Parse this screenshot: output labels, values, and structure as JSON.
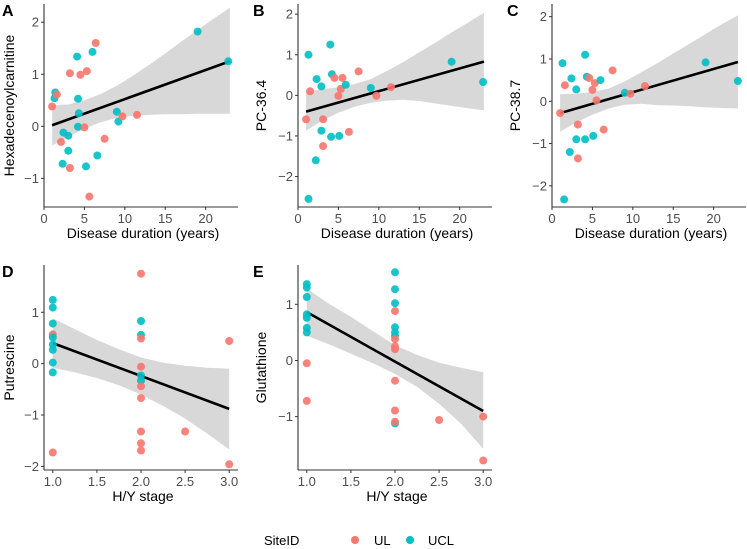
{
  "colors": {
    "UL": "#F8766D",
    "UCL": "#00BFC4",
    "ribbon": "#BEBEBE",
    "fit_line": "#000000",
    "axis": "#333333"
  },
  "legend": {
    "title": "SiteID",
    "items": [
      {
        "key": "UL",
        "label": "UL"
      },
      {
        "key": "UCL",
        "label": "UCL"
      }
    ]
  },
  "chart_data": [
    {
      "panel": "A",
      "type": "scatter",
      "title": "",
      "xlabel": "Disease duration (years)",
      "ylabel": "Hexadecenoylcarnitine",
      "xlim": [
        0,
        24
      ],
      "ylim": [
        -1.55,
        2.35
      ],
      "xticks": [
        0,
        5,
        10,
        15,
        20
      ],
      "yticks": [
        -1,
        0,
        1,
        2
      ],
      "xtick_labels": [
        "0",
        "5",
        "10",
        "15",
        "20"
      ],
      "ytick_labels": [
        "−1",
        "0",
        "1",
        "2"
      ],
      "fit": {
        "x": [
          1,
          23
        ],
        "y": [
          0.02,
          1.25
        ]
      },
      "ribbon": {
        "x": [
          1,
          3,
          5,
          7,
          9,
          11,
          13,
          15,
          17,
          19,
          21,
          23
        ],
        "lower": [
          -0.37,
          -0.2,
          -0.05,
          0.08,
          0.16,
          0.2,
          0.22,
          0.23,
          0.23,
          0.24,
          0.24,
          0.24
        ],
        "upper": [
          0.41,
          0.42,
          0.5,
          0.62,
          0.78,
          0.97,
          1.18,
          1.4,
          1.63,
          1.85,
          2.07,
          2.28
        ]
      },
      "points": [
        {
          "x": 1.0,
          "y": 0.38,
          "site": "UL"
        },
        {
          "x": 1.4,
          "y": 0.65,
          "site": "UCL"
        },
        {
          "x": 1.3,
          "y": 0.54,
          "site": "UCL"
        },
        {
          "x": 1.6,
          "y": 0.61,
          "site": "UL"
        },
        {
          "x": 2.1,
          "y": -0.3,
          "site": "UL"
        },
        {
          "x": 2.3,
          "y": -0.72,
          "site": "UCL"
        },
        {
          "x": 2.4,
          "y": -0.12,
          "site": "UCL"
        },
        {
          "x": 3.0,
          "y": -0.18,
          "site": "UCL"
        },
        {
          "x": 3.0,
          "y": -0.47,
          "site": "UCL"
        },
        {
          "x": 3.2,
          "y": 1.02,
          "site": "UL"
        },
        {
          "x": 3.2,
          "y": -0.8,
          "site": "UL"
        },
        {
          "x": 4.1,
          "y": 1.34,
          "site": "UCL"
        },
        {
          "x": 4.2,
          "y": 0.53,
          "site": "UCL"
        },
        {
          "x": 4.3,
          "y": 0.25,
          "site": "UCL"
        },
        {
          "x": 4.2,
          "y": -0.01,
          "site": "UCL"
        },
        {
          "x": 4.5,
          "y": 0.99,
          "site": "UL"
        },
        {
          "x": 5.0,
          "y": -0.02,
          "site": "UL"
        },
        {
          "x": 5.2,
          "y": -0.77,
          "site": "UCL"
        },
        {
          "x": 5.3,
          "y": 1.06,
          "site": "UL"
        },
        {
          "x": 5.6,
          "y": -1.35,
          "site": "UL"
        },
        {
          "x": 6.0,
          "y": 1.43,
          "site": "UCL"
        },
        {
          "x": 6.4,
          "y": 1.6,
          "site": "UL"
        },
        {
          "x": 6.6,
          "y": -0.56,
          "site": "UCL"
        },
        {
          "x": 7.5,
          "y": -0.24,
          "site": "UL"
        },
        {
          "x": 9.0,
          "y": 0.28,
          "site": "UCL"
        },
        {
          "x": 9.2,
          "y": 0.09,
          "site": "UCL"
        },
        {
          "x": 9.7,
          "y": 0.19,
          "site": "UL"
        },
        {
          "x": 11.5,
          "y": 0.22,
          "site": "UL"
        },
        {
          "x": 19.0,
          "y": 1.82,
          "site": "UCL"
        },
        {
          "x": 22.8,
          "y": 1.25,
          "site": "UCL"
        }
      ]
    },
    {
      "panel": "B",
      "type": "scatter",
      "title": "",
      "xlabel": "Disease duration (years)",
      "ylabel": "PC-36.4",
      "xlim": [
        0,
        24
      ],
      "ylim": [
        -2.75,
        2.25
      ],
      "xticks": [
        0,
        5,
        10,
        15,
        20
      ],
      "yticks": [
        -2,
        -1,
        0,
        1,
        2
      ],
      "xtick_labels": [
        "0",
        "5",
        "10",
        "15",
        "20"
      ],
      "ytick_labels": [
        "−2",
        "−1",
        "0",
        "1",
        "2"
      ],
      "fit": {
        "x": [
          1,
          23
        ],
        "y": [
          -0.4,
          0.83
        ]
      },
      "ribbon": {
        "x": [
          1,
          3,
          5,
          7,
          9,
          11,
          13,
          15,
          17,
          19,
          21,
          23
        ],
        "lower": [
          -0.87,
          -0.62,
          -0.43,
          -0.28,
          -0.18,
          -0.13,
          -0.11,
          -0.14,
          -0.2,
          -0.26,
          -0.32,
          -0.37
        ],
        "upper": [
          0.08,
          0.15,
          0.2,
          0.28,
          0.4,
          0.6,
          0.82,
          1.06,
          1.3,
          1.55,
          1.79,
          2.03
        ]
      },
      "points": [
        {
          "x": 1.0,
          "y": -0.59,
          "site": "UL"
        },
        {
          "x": 1.3,
          "y": 1.0,
          "site": "UCL"
        },
        {
          "x": 1.5,
          "y": 0.1,
          "site": "UL"
        },
        {
          "x": 1.3,
          "y": -2.55,
          "site": "UCL"
        },
        {
          "x": 2.2,
          "y": -1.6,
          "site": "UCL"
        },
        {
          "x": 2.3,
          "y": 0.4,
          "site": "UCL"
        },
        {
          "x": 2.9,
          "y": 0.22,
          "site": "UCL"
        },
        {
          "x": 2.9,
          "y": -0.87,
          "site": "UCL"
        },
        {
          "x": 3.1,
          "y": -0.59,
          "site": "UL"
        },
        {
          "x": 3.1,
          "y": -1.25,
          "site": "UL"
        },
        {
          "x": 4.0,
          "y": 1.25,
          "site": "UCL"
        },
        {
          "x": 4.1,
          "y": -1.02,
          "site": "UCL"
        },
        {
          "x": 4.2,
          "y": 0.52,
          "site": "UCL"
        },
        {
          "x": 4.5,
          "y": 0.43,
          "site": "UL"
        },
        {
          "x": 5.0,
          "y": -0.01,
          "site": "UL"
        },
        {
          "x": 5.1,
          "y": -1.0,
          "site": "UCL"
        },
        {
          "x": 5.3,
          "y": 0.16,
          "site": "UL"
        },
        {
          "x": 5.5,
          "y": 0.43,
          "site": "UL"
        },
        {
          "x": 5.9,
          "y": 0.26,
          "site": "UCL"
        },
        {
          "x": 6.3,
          "y": -0.9,
          "site": "UL"
        },
        {
          "x": 7.5,
          "y": 0.59,
          "site": "UL"
        },
        {
          "x": 9.0,
          "y": 0.18,
          "site": "UCL"
        },
        {
          "x": 9.7,
          "y": -0.01,
          "site": "UL"
        },
        {
          "x": 11.5,
          "y": 0.2,
          "site": "UL"
        },
        {
          "x": 19.0,
          "y": 0.83,
          "site": "UCL"
        },
        {
          "x": 22.9,
          "y": 0.33,
          "site": "UCL"
        }
      ]
    },
    {
      "panel": "C",
      "type": "scatter",
      "title": "",
      "xlabel": "Disease duration (years)",
      "ylabel": "PC-38.7",
      "xlim": [
        0,
        24
      ],
      "ylim": [
        -2.5,
        2.3
      ],
      "xticks": [
        0,
        5,
        10,
        15,
        20
      ],
      "yticks": [
        -2,
        -1,
        0,
        1,
        2
      ],
      "xtick_labels": [
        "0",
        "5",
        "10",
        "15",
        "20"
      ],
      "ytick_labels": [
        "−2",
        "−1",
        "0",
        "1",
        "2"
      ],
      "fit": {
        "x": [
          1,
          23
        ],
        "y": [
          -0.28,
          0.93
        ]
      },
      "ribbon": {
        "x": [
          1,
          3,
          5,
          7,
          9,
          11,
          13,
          15,
          17,
          19,
          21,
          23
        ],
        "lower": [
          -0.72,
          -0.5,
          -0.32,
          -0.17,
          -0.08,
          -0.06,
          -0.09,
          -0.1,
          -0.12,
          -0.14,
          -0.16,
          -0.17
        ],
        "upper": [
          0.17,
          0.18,
          0.22,
          0.3,
          0.47,
          0.68,
          0.9,
          1.13,
          1.36,
          1.59,
          1.82,
          2.03
        ]
      },
      "points": [
        {
          "x": 1.0,
          "y": -0.28,
          "site": "UL"
        },
        {
          "x": 1.3,
          "y": 0.9,
          "site": "UCL"
        },
        {
          "x": 1.6,
          "y": 0.38,
          "site": "UL"
        },
        {
          "x": 1.5,
          "y": -2.32,
          "site": "UCL"
        },
        {
          "x": 2.2,
          "y": -1.2,
          "site": "UCL"
        },
        {
          "x": 2.4,
          "y": 0.54,
          "site": "UCL"
        },
        {
          "x": 3.0,
          "y": 0.28,
          "site": "UCL"
        },
        {
          "x": 3.0,
          "y": -0.9,
          "site": "UCL"
        },
        {
          "x": 3.2,
          "y": -0.55,
          "site": "UL"
        },
        {
          "x": 3.2,
          "y": -1.35,
          "site": "UL"
        },
        {
          "x": 4.1,
          "y": 1.1,
          "site": "UCL"
        },
        {
          "x": 4.1,
          "y": -0.9,
          "site": "UCL"
        },
        {
          "x": 4.3,
          "y": 0.58,
          "site": "UCL"
        },
        {
          "x": 4.6,
          "y": 0.55,
          "site": "UL"
        },
        {
          "x": 5.0,
          "y": 0.27,
          "site": "UL"
        },
        {
          "x": 5.1,
          "y": -0.82,
          "site": "UCL"
        },
        {
          "x": 5.3,
          "y": 0.43,
          "site": "UL"
        },
        {
          "x": 5.5,
          "y": 0.02,
          "site": "UL"
        },
        {
          "x": 6.0,
          "y": 0.5,
          "site": "UCL"
        },
        {
          "x": 6.4,
          "y": -0.67,
          "site": "UL"
        },
        {
          "x": 7.5,
          "y": 0.73,
          "site": "UL"
        },
        {
          "x": 9.0,
          "y": 0.2,
          "site": "UCL"
        },
        {
          "x": 9.7,
          "y": 0.18,
          "site": "UL"
        },
        {
          "x": 11.5,
          "y": 0.36,
          "site": "UL"
        },
        {
          "x": 19.0,
          "y": 0.92,
          "site": "UCL"
        },
        {
          "x": 23.0,
          "y": 0.48,
          "site": "UCL"
        }
      ]
    },
    {
      "panel": "D",
      "type": "scatter",
      "title": "",
      "xlabel": "H/Y stage",
      "ylabel": "Putrescine",
      "xlim": [
        0.9,
        3.1
      ],
      "ylim": [
        -2.07,
        1.92
      ],
      "xticks": [
        1.0,
        1.5,
        2.0,
        2.5,
        3.0
      ],
      "yticks": [
        -2,
        -1,
        0,
        1
      ],
      "xtick_labels": [
        "1.0",
        "1.5",
        "2.0",
        "2.5",
        "3.0"
      ],
      "ytick_labels": [
        "−2",
        "−1",
        "0",
        "1"
      ],
      "fit": {
        "x": [
          1,
          3
        ],
        "y": [
          0.4,
          -0.88
        ]
      },
      "ribbon": {
        "x": [
          1,
          1.25,
          1.5,
          1.75,
          2,
          2.25,
          2.5,
          2.75,
          3
        ],
        "lower": [
          -0.08,
          -0.17,
          -0.28,
          -0.42,
          -0.6,
          -0.82,
          -1.07,
          -1.36,
          -1.67
        ],
        "upper": [
          0.88,
          0.67,
          0.46,
          0.28,
          0.12,
          0.02,
          -0.04,
          -0.08,
          -0.1
        ]
      },
      "points": [
        {
          "x": 1.0,
          "y": 1.24,
          "site": "UCL"
        },
        {
          "x": 1.0,
          "y": 1.09,
          "site": "UCL"
        },
        {
          "x": 1.0,
          "y": 0.78,
          "site": "UCL"
        },
        {
          "x": 1.0,
          "y": 0.57,
          "site": "UL"
        },
        {
          "x": 1.0,
          "y": 0.51,
          "site": "UCL"
        },
        {
          "x": 1.0,
          "y": 0.37,
          "site": "UCL"
        },
        {
          "x": 1.0,
          "y": 0.27,
          "site": "UCL"
        },
        {
          "x": 1.0,
          "y": 0.02,
          "site": "UCL"
        },
        {
          "x": 1.0,
          "y": -0.17,
          "site": "UCL"
        },
        {
          "x": 1.0,
          "y": -1.73,
          "site": "UL"
        },
        {
          "x": 2.0,
          "y": 1.75,
          "site": "UL"
        },
        {
          "x": 2.0,
          "y": 0.83,
          "site": "UCL"
        },
        {
          "x": 2.0,
          "y": 0.56,
          "site": "UCL"
        },
        {
          "x": 2.0,
          "y": 0.49,
          "site": "UL"
        },
        {
          "x": 2.0,
          "y": -0.23,
          "site": "UCL"
        },
        {
          "x": 2.0,
          "y": -0.33,
          "site": "UCL"
        },
        {
          "x": 2.0,
          "y": -0.06,
          "site": "UL"
        },
        {
          "x": 2.0,
          "y": -0.44,
          "site": "UL"
        },
        {
          "x": 2.0,
          "y": -0.67,
          "site": "UL"
        },
        {
          "x": 2.0,
          "y": -1.32,
          "site": "UL"
        },
        {
          "x": 2.0,
          "y": -1.55,
          "site": "UL"
        },
        {
          "x": 2.0,
          "y": -1.69,
          "site": "UL"
        },
        {
          "x": 2.5,
          "y": -1.32,
          "site": "UL"
        },
        {
          "x": 3.0,
          "y": 0.44,
          "site": "UL"
        },
        {
          "x": 3.0,
          "y": -1.96,
          "site": "UL"
        }
      ]
    },
    {
      "panel": "E",
      "type": "scatter",
      "title": "",
      "xlabel": "H/Y stage",
      "ylabel": "Glutathione",
      "xlim": [
        0.9,
        3.1
      ],
      "ylim": [
        -1.95,
        1.7
      ],
      "xticks": [
        1.0,
        1.5,
        2.0,
        2.5,
        3.0
      ],
      "yticks": [
        -1,
        0,
        1
      ],
      "xtick_labels": [
        "1.0",
        "1.5",
        "2.0",
        "2.5",
        "3.0"
      ],
      "ytick_labels": [
        "−1",
        "0",
        "1"
      ],
      "fit": {
        "x": [
          1,
          3
        ],
        "y": [
          0.86,
          -0.9
        ]
      },
      "ribbon": {
        "x": [
          1,
          1.25,
          1.5,
          1.75,
          2,
          2.25,
          2.5,
          2.75,
          3
        ],
        "lower": [
          0.44,
          0.29,
          0.12,
          -0.05,
          -0.24,
          -0.47,
          -0.77,
          -1.13,
          -1.57
        ],
        "upper": [
          1.28,
          1.01,
          0.78,
          0.52,
          0.27,
          0.1,
          -0.04,
          -0.13,
          -0.21
        ]
      },
      "points": [
        {
          "x": 1.0,
          "y": 1.36,
          "site": "UCL"
        },
        {
          "x": 1.0,
          "y": 1.3,
          "site": "UCL"
        },
        {
          "x": 1.0,
          "y": 1.13,
          "site": "UCL"
        },
        {
          "x": 1.0,
          "y": 0.82,
          "site": "UCL"
        },
        {
          "x": 1.0,
          "y": 0.76,
          "site": "UCL"
        },
        {
          "x": 1.0,
          "y": 0.58,
          "site": "UCL"
        },
        {
          "x": 1.0,
          "y": 0.5,
          "site": "UCL"
        },
        {
          "x": 1.0,
          "y": -0.05,
          "site": "UL"
        },
        {
          "x": 1.0,
          "y": -0.72,
          "site": "UL"
        },
        {
          "x": 2.0,
          "y": 1.57,
          "site": "UCL"
        },
        {
          "x": 2.0,
          "y": 1.27,
          "site": "UCL"
        },
        {
          "x": 2.0,
          "y": 1.02,
          "site": "UCL"
        },
        {
          "x": 2.0,
          "y": 0.88,
          "site": "UL"
        },
        {
          "x": 2.0,
          "y": 0.59,
          "site": "UCL"
        },
        {
          "x": 2.0,
          "y": 0.5,
          "site": "UCL"
        },
        {
          "x": 2.0,
          "y": 0.44,
          "site": "UCL"
        },
        {
          "x": 2.0,
          "y": 0.38,
          "site": "UL"
        },
        {
          "x": 2.0,
          "y": 0.25,
          "site": "UL"
        },
        {
          "x": 2.0,
          "y": 0.2,
          "site": "UL"
        },
        {
          "x": 2.0,
          "y": -0.36,
          "site": "UL"
        },
        {
          "x": 2.0,
          "y": -0.89,
          "site": "UL"
        },
        {
          "x": 2.0,
          "y": -1.12,
          "site": "UCL"
        },
        {
          "x": 2.0,
          "y": -1.09,
          "site": "UL"
        },
        {
          "x": 2.5,
          "y": -1.06,
          "site": "UL"
        },
        {
          "x": 3.0,
          "y": -1.0,
          "site": "UL"
        },
        {
          "x": 3.0,
          "y": -1.78,
          "site": "UL"
        }
      ]
    }
  ]
}
